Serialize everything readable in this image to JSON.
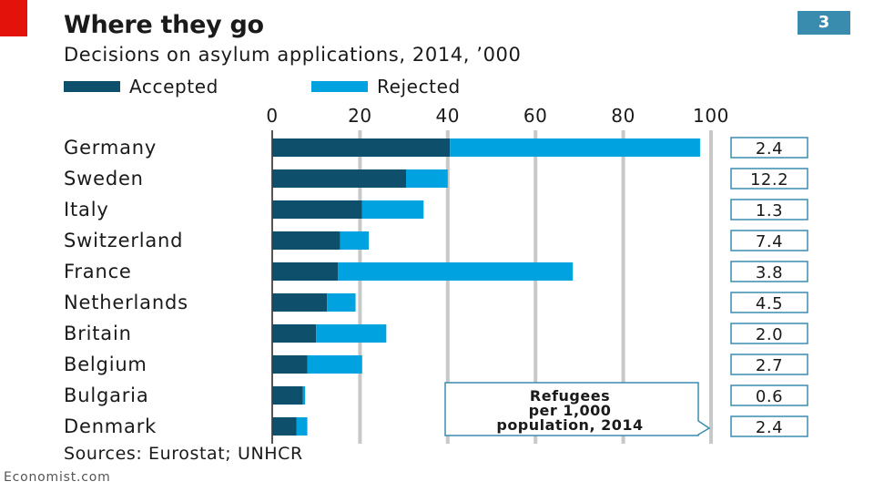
{
  "title": "Where they go",
  "subtitle": "Decisions on asylum applications, 2014, ’000",
  "chart_number": "3",
  "source": "Sources: Eurostat; UNHCR",
  "brand": "Economist.com",
  "colors": {
    "accepted": "#0e4f6b",
    "rejected": "#00a3e0",
    "grid": "#c8c8c8",
    "accent_red": "#e3120b",
    "tag_blue": "#3a8caf"
  },
  "chart_data": {
    "type": "bar",
    "orientation": "horizontal",
    "stacked": true,
    "title": "Where they go",
    "subtitle": "Decisions on asylum applications, 2014, ’000",
    "categories": [
      "Germany",
      "Sweden",
      "Italy",
      "Switzerland",
      "France",
      "Netherlands",
      "Britain",
      "Belgium",
      "Bulgaria",
      "Denmark"
    ],
    "series": [
      {
        "name": "Accepted",
        "color": "#0e4f6b",
        "values": [
          40.5,
          30.5,
          20.5,
          15.5,
          15,
          12.5,
          10,
          8,
          7,
          5.5
        ]
      },
      {
        "name": "Rejected",
        "color": "#00a3e0",
        "values": [
          57,
          9.5,
          14,
          6.5,
          53.5,
          6.5,
          16,
          12.5,
          0.5,
          2.5
        ]
      }
    ],
    "xlim": [
      0,
      100
    ],
    "xticks": [
      0,
      20,
      40,
      60,
      80,
      100
    ],
    "xaxis_position": "top",
    "grid": true,
    "legend": "top-left",
    "side_values": {
      "label": "Refugees per 1,000 population, 2014",
      "values": [
        "2.4",
        "12.2",
        "1.3",
        "7.4",
        "3.8",
        "4.5",
        "2.0",
        "2.7",
        "0.6",
        "2.4"
      ]
    },
    "callout_text": "Refugees\nper 1,000\npopulation, 2014"
  }
}
